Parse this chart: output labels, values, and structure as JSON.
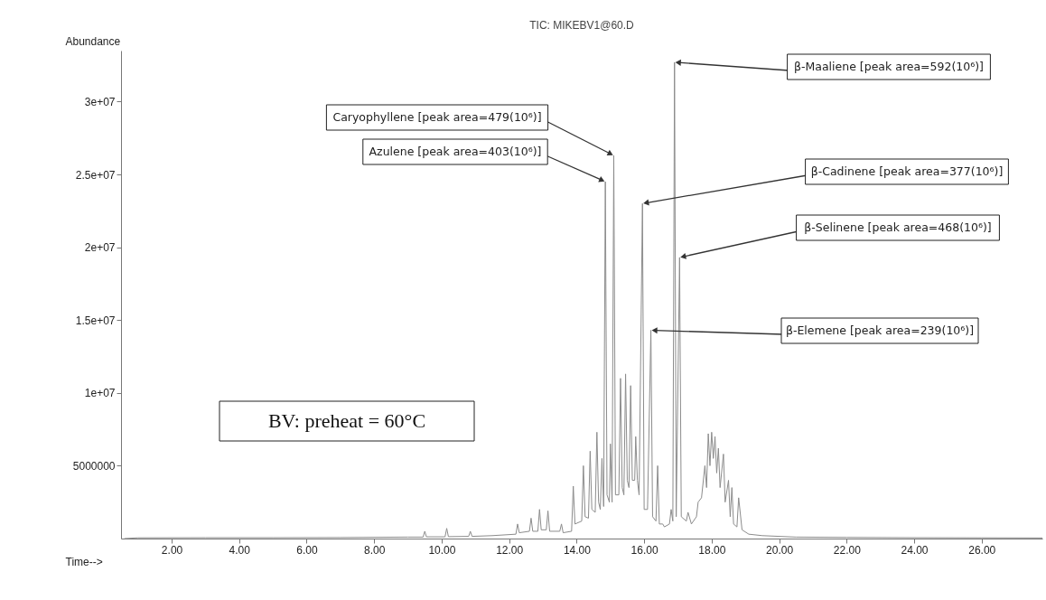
{
  "chart_data": {
    "type": "line",
    "title": "TIC: MIKEBV1@60.D",
    "xlabel": "Time-->",
    "ylabel": "Abundance",
    "xlim": [
      0.5,
      27.8
    ],
    "ylim": [
      0,
      33500000
    ],
    "xticks": [
      {
        "value": 2,
        "label": "2.00"
      },
      {
        "value": 4,
        "label": "4.00"
      },
      {
        "value": 6,
        "label": "6.00"
      },
      {
        "value": 8,
        "label": "8.00"
      },
      {
        "value": 10,
        "label": "10.00"
      },
      {
        "value": 12,
        "label": "12.00"
      },
      {
        "value": 14,
        "label": "14.00"
      },
      {
        "value": 16,
        "label": "16.00"
      },
      {
        "value": 18,
        "label": "18.00"
      },
      {
        "value": 20,
        "label": "20.00"
      },
      {
        "value": 22,
        "label": "22.00"
      },
      {
        "value": 24,
        "label": "24.00"
      },
      {
        "value": 26,
        "label": "26.00"
      }
    ],
    "yticks": [
      5000000,
      {
        "value": 10000000,
        "label": "1e+07"
      },
      {
        "value": 15000000,
        "label": "1.5e+07"
      },
      {
        "value": 20000000,
        "label": "2e+07"
      },
      {
        "value": 25000000,
        "label": "2.5e+07"
      },
      {
        "value": 30000000,
        "label": "3e+07"
      }
    ],
    "grid": false,
    "marker": "none",
    "line_style": "solid",
    "series": [
      {
        "color": "#8c8c8c",
        "x": [
          0.6,
          1,
          3,
          5,
          7,
          9,
          9.45,
          9.5,
          9.55,
          10.1,
          10.15,
          10.2,
          10.8,
          10.85,
          10.9,
          11.5,
          12.2,
          12.25,
          12.3,
          12.6,
          12.65,
          12.7,
          12.85,
          12.9,
          12.95,
          13.1,
          13.15,
          13.2,
          13.5,
          13.55,
          13.6,
          13.85,
          13.9,
          13.95,
          14.15,
          14.2,
          14.25,
          14.35,
          14.4,
          14.45,
          14.55,
          14.6,
          14.65,
          14.7,
          14.75,
          14.8,
          14.85,
          14.9,
          14.97,
          15.0,
          15.05,
          15.1,
          15.15,
          15.25,
          15.3,
          15.35,
          15.4,
          15.45,
          15.5,
          15.55,
          15.6,
          15.65,
          15.72,
          15.75,
          15.8,
          15.85,
          15.95,
          16.0,
          16.1,
          16.2,
          16.25,
          16.35,
          16.4,
          16.45,
          16.55,
          16.6,
          16.75,
          16.8,
          16.85,
          16.9,
          16.95,
          17.05,
          17.1,
          17.25,
          17.3,
          17.4,
          17.55,
          17.6,
          17.7,
          17.8,
          17.85,
          17.9,
          17.95,
          18.0,
          18.05,
          18.1,
          18.15,
          18.2,
          18.25,
          18.35,
          18.4,
          18.5,
          18.55,
          18.6,
          18.65,
          18.75,
          18.8,
          18.9,
          19.1,
          19.5,
          20.5,
          22,
          24,
          26,
          27.8
        ],
        "values": [
          0,
          50000,
          60000,
          60000,
          70000,
          100000,
          100000,
          500000,
          120000,
          120000,
          700000,
          130000,
          150000,
          500000,
          150000,
          200000,
          300000,
          1000000,
          400000,
          500000,
          1400000,
          500000,
          500000,
          2000000,
          600000,
          600000,
          1900000,
          500000,
          500000,
          1000000,
          400000,
          500000,
          3600000,
          1000000,
          1200000,
          5000000,
          1500000,
          1400000,
          6000000,
          2000000,
          1800000,
          7300000,
          2500000,
          2000000,
          5500000,
          2200000,
          24500000,
          3000000,
          2500000,
          6500000,
          2500000,
          26300000,
          3000000,
          3000000,
          11000000,
          3500000,
          3000000,
          11300000,
          4000000,
          3500000,
          10500000,
          4000000,
          4000000,
          7000000,
          4000000,
          3000000,
          23000000,
          2000000,
          2000000,
          14300000,
          1500000,
          1200000,
          5000000,
          1000000,
          1000000,
          800000,
          1000000,
          2000000,
          1200000,
          32700000,
          1500000,
          19300000,
          1500000,
          1200000,
          1800000,
          1000000,
          1500000,
          2500000,
          2800000,
          5000000,
          3500000,
          7200000,
          5000000,
          7300000,
          5500000,
          7000000,
          4500000,
          6200000,
          3500000,
          5800000,
          2500000,
          4000000,
          1500000,
          3500000,
          1000000,
          800000,
          2800000,
          600000,
          300000,
          200000,
          100000,
          80000,
          60000,
          50000,
          40000
        ]
      }
    ],
    "annotations": [
      {
        "text": "β-Maaliene [peak area=592(10⁶)]",
        "x": 16.9,
        "y": 32700000
      },
      {
        "text": "Caryophyllene [peak area=479(10⁶)]",
        "x": 15.1,
        "y": 26300000
      },
      {
        "text": "Azulene [peak area=403(10⁶)]",
        "x": 14.85,
        "y": 24500000
      },
      {
        "text": "β-Cadinene [peak area=377(10⁶)]",
        "x": 15.95,
        "y": 23000000
      },
      {
        "text": "β-Selinene [peak area=468(10⁶)]",
        "x": 17.05,
        "y": 19300000
      },
      {
        "text": "β-Elemene [peak area=239(10⁶)]",
        "x": 16.2,
        "y": 14300000
      },
      "BV: preheat = 60°C"
    ]
  }
}
